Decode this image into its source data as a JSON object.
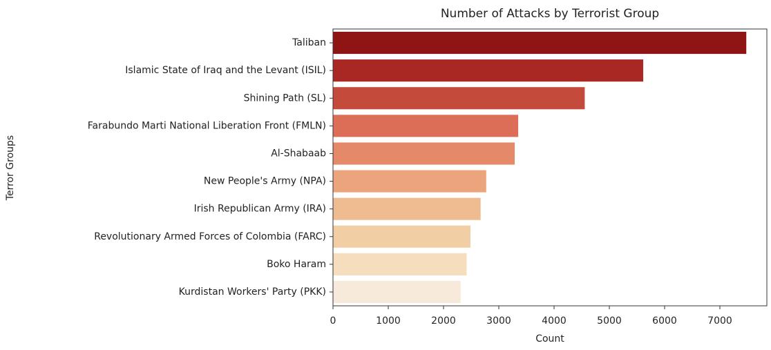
{
  "chart_data": {
    "type": "barh",
    "title": "Number of Attacks by Terrorist Group",
    "x_label": "Count",
    "y_label": "Terror Groups",
    "categories": [
      "Taliban",
      "Islamic State of Iraq and the Levant (ISIL)",
      "Shining Path (SL)",
      "Farabundo Marti National Liberation Front (FMLN)",
      "Al-Shabaab",
      "New People's Army (NPA)",
      "Irish Republican Army (IRA)",
      "Revolutionary Armed Forces of Colombia (FARC)",
      "Boko Haram",
      "Kurdistan Workers' Party (PKK)"
    ],
    "values": [
      7478,
      5613,
      4555,
      3351,
      3288,
      2772,
      2671,
      2487,
      2418,
      2310
    ],
    "colors": [
      "#8f1515",
      "#aa2823",
      "#c44b3b",
      "#dc6e58",
      "#e58a69",
      "#eba47b",
      "#efbb90",
      "#f2cea4",
      "#f5ddbd",
      "#f8eadb"
    ],
    "xlim": [
      0,
      7850
    ],
    "xticks": [
      0,
      1000,
      2000,
      3000,
      4000,
      5000,
      6000,
      7000
    ]
  }
}
